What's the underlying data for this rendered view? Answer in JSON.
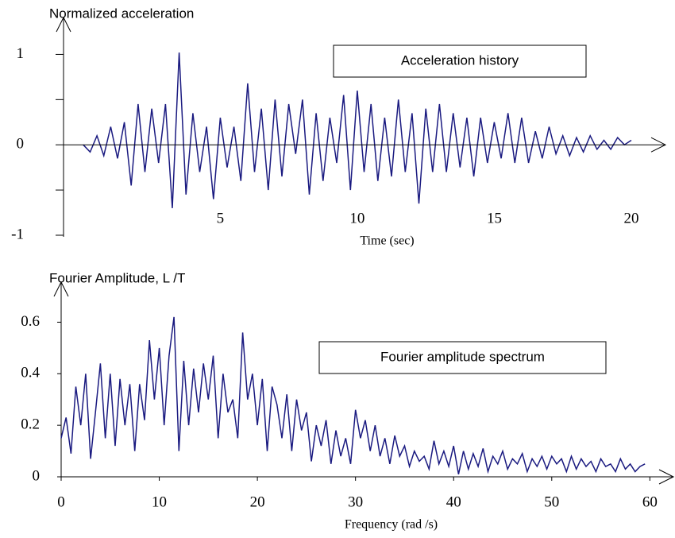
{
  "chart_data": [
    {
      "type": "line",
      "ylabel": "Normalized acceleration",
      "annotation": "Acceleration history",
      "xlabel": "Time (sec)",
      "xlim": [
        -0.72,
        21.16
      ],
      "ylim": [
        -1,
        1.25
      ],
      "xticks": [
        5,
        10,
        15,
        20
      ],
      "yticks": [
        -1,
        0,
        1
      ],
      "yminorticks": [
        -0.5,
        0.5
      ],
      "series": [
        {
          "color": "#1a1a80",
          "x": [
            0,
            0.25,
            0.5,
            0.75,
            1,
            1.25,
            1.5,
            1.75,
            2,
            2.25,
            2.5,
            2.75,
            3,
            3.25,
            3.5,
            3.75,
            4,
            4.25,
            4.5,
            4.75,
            5,
            5.25,
            5.5,
            5.75,
            6,
            6.25,
            6.5,
            6.75,
            7,
            7.25,
            7.5,
            7.75,
            8,
            8.25,
            8.5,
            8.75,
            9,
            9.25,
            9.5,
            9.75,
            10,
            10.25,
            10.5,
            10.75,
            11,
            11.25,
            11.5,
            11.75,
            12,
            12.25,
            12.5,
            12.75,
            13,
            13.25,
            13.5,
            13.75,
            14,
            14.25,
            14.5,
            14.75,
            15,
            15.25,
            15.5,
            15.75,
            16,
            16.25,
            16.5,
            16.75,
            17,
            17.25,
            17.5,
            17.75,
            18,
            18.25,
            18.5,
            18.75,
            19,
            19.25,
            19.5,
            19.75,
            20
          ],
          "values": [
            0,
            -0.08,
            0.1,
            -0.12,
            0.2,
            -0.15,
            0.25,
            -0.45,
            0.45,
            -0.3,
            0.4,
            -0.2,
            0.45,
            -0.7,
            1.02,
            -0.55,
            0.35,
            -0.3,
            0.2,
            -0.6,
            0.3,
            -0.25,
            0.2,
            -0.4,
            0.68,
            -0.3,
            0.4,
            -0.5,
            0.5,
            -0.35,
            0.45,
            -0.1,
            0.5,
            -0.55,
            0.35,
            -0.4,
            0.3,
            -0.2,
            0.55,
            -0.5,
            0.6,
            -0.3,
            0.45,
            -0.4,
            0.3,
            -0.35,
            0.5,
            -0.3,
            0.35,
            -0.65,
            0.4,
            -0.3,
            0.45,
            -0.3,
            0.35,
            -0.25,
            0.3,
            -0.35,
            0.3,
            -0.2,
            0.25,
            -0.15,
            0.35,
            -0.2,
            0.3,
            -0.2,
            0.15,
            -0.15,
            0.2,
            -0.1,
            0.1,
            -0.12,
            0.08,
            -0.08,
            0.1,
            -0.05,
            0.05,
            -0.05,
            0.08,
            0,
            0.05
          ]
        }
      ]
    },
    {
      "type": "line",
      "ylabel": "Fourier Amplitude, L /T",
      "annotation": "Fourier amplitude spectrum",
      "xlabel": "Frequency (rad /s)",
      "xlim": [
        0,
        62.4
      ],
      "ylim": [
        0,
        0.7
      ],
      "xticks": [
        0,
        10,
        20,
        30,
        40,
        50,
        60
      ],
      "yticks": [
        0,
        0.2,
        0.4,
        0.6
      ],
      "series": [
        {
          "color": "#1a1a80",
          "x": [
            0,
            0.5,
            1,
            1.5,
            2,
            2.5,
            3,
            3.5,
            4,
            4.5,
            5,
            5.5,
            6,
            6.5,
            7,
            7.5,
            8,
            8.5,
            9,
            9.5,
            10,
            10.5,
            11,
            11.5,
            12,
            12.5,
            13,
            13.5,
            14,
            14.5,
            15,
            15.5,
            16,
            16.5,
            17,
            17.5,
            18,
            18.5,
            19,
            19.5,
            20,
            20.5,
            21,
            21.5,
            22,
            22.5,
            23,
            23.5,
            24,
            24.5,
            25,
            25.5,
            26,
            26.5,
            27,
            27.5,
            28,
            28.5,
            29,
            29.5,
            30,
            30.5,
            31,
            31.5,
            32,
            32.5,
            33,
            33.5,
            34,
            34.5,
            35,
            35.5,
            36,
            36.5,
            37,
            37.5,
            38,
            38.5,
            39,
            39.5,
            40,
            40.5,
            41,
            41.5,
            42,
            42.5,
            43,
            43.5,
            44,
            44.5,
            45,
            45.5,
            46,
            46.5,
            47,
            47.5,
            48,
            48.5,
            49,
            49.5,
            50,
            50.5,
            51,
            51.5,
            52,
            52.5,
            53,
            53.5,
            54,
            54.5,
            55,
            55.5,
            56,
            56.5,
            57,
            57.5,
            58,
            58.5,
            59,
            59.5
          ],
          "values": [
            0.15,
            0.23,
            0.09,
            0.35,
            0.2,
            0.4,
            0.07,
            0.25,
            0.44,
            0.15,
            0.4,
            0.12,
            0.38,
            0.2,
            0.36,
            0.1,
            0.36,
            0.22,
            0.53,
            0.3,
            0.5,
            0.2,
            0.47,
            0.62,
            0.1,
            0.45,
            0.2,
            0.42,
            0.25,
            0.44,
            0.3,
            0.47,
            0.15,
            0.4,
            0.25,
            0.3,
            0.15,
            0.56,
            0.3,
            0.4,
            0.2,
            0.38,
            0.1,
            0.35,
            0.28,
            0.15,
            0.32,
            0.1,
            0.3,
            0.18,
            0.25,
            0.06,
            0.2,
            0.12,
            0.22,
            0.05,
            0.18,
            0.08,
            0.15,
            0.05,
            0.26,
            0.15,
            0.22,
            0.1,
            0.2,
            0.08,
            0.15,
            0.05,
            0.16,
            0.08,
            0.12,
            0.04,
            0.1,
            0.06,
            0.08,
            0.03,
            0.14,
            0.05,
            0.1,
            0.04,
            0.12,
            0.01,
            0.1,
            0.03,
            0.09,
            0.04,
            0.11,
            0.02,
            0.08,
            0.05,
            0.1,
            0.03,
            0.07,
            0.05,
            0.09,
            0.02,
            0.07,
            0.04,
            0.08,
            0.03,
            0.08,
            0.05,
            0.07,
            0.02,
            0.08,
            0.03,
            0.07,
            0.04,
            0.06,
            0.02,
            0.07,
            0.04,
            0.05,
            0.02,
            0.07,
            0.03,
            0.05,
            0.02,
            0.04,
            0.05
          ]
        }
      ]
    }
  ]
}
